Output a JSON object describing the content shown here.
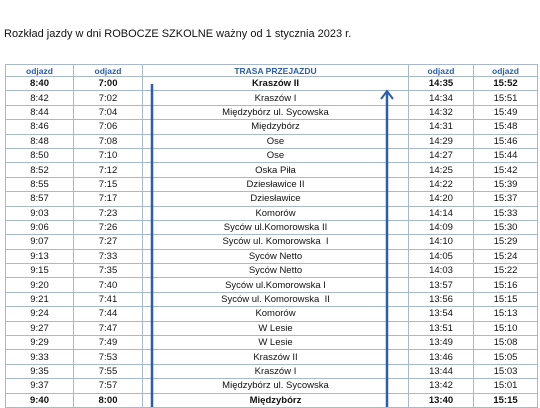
{
  "header": {
    "title": "Rozkład jazdy w dni ROBOCZE SZKOLNE ważny od 1 stycznia 2023 r."
  },
  "table": {
    "columns": [
      "odjazd",
      "odjazd",
      "TRASA PRZEJAZDU",
      "odjazd",
      "odjazd"
    ],
    "rows": [
      [
        "8:40",
        "7:00",
        "Kraszów II",
        "14:35",
        "15:52"
      ],
      [
        "8:42",
        "7:02",
        "Kraszów I",
        "14:34",
        "15:51"
      ],
      [
        "8:44",
        "7:04",
        "Międzybórz ul. Sycowska",
        "14:32",
        "15:49"
      ],
      [
        "8:46",
        "7:06",
        "Międzybórz",
        "14:31",
        "15:48"
      ],
      [
        "8:48",
        "7:08",
        "Ose",
        "14:29",
        "15:46"
      ],
      [
        "8:50",
        "7:10",
        "Ose",
        "14:27",
        "15:44"
      ],
      [
        "8:52",
        "7:12",
        "Oska Piła",
        "14:25",
        "15:42"
      ],
      [
        "8:55",
        "7:15",
        "Dziesławice II",
        "14:22",
        "15:39"
      ],
      [
        "8:57",
        "7:17",
        "Dziesławice",
        "14:20",
        "15:37"
      ],
      [
        "9:03",
        "7:23",
        "Komorów",
        "14:14",
        "15:33"
      ],
      [
        "9:06",
        "7:26",
        "Syców ul.Komorowska II",
        "14:09",
        "15:30"
      ],
      [
        "9:07",
        "7:27",
        "Syców ul. Komorowska  I",
        "14:10",
        "15:29"
      ],
      [
        "9:13",
        "7:33",
        "Syców Netto",
        "14:05",
        "15:24"
      ],
      [
        "9:15",
        "7:35",
        "Syców Netto",
        "14:03",
        "15:22"
      ],
      [
        "9:20",
        "7:40",
        "Syców ul.Komorowska I",
        "13:57",
        "15:16"
      ],
      [
        "9:21",
        "7:41",
        "Syców ul. Komorowska  II",
        "13:56",
        "15:15"
      ],
      [
        "9:24",
        "7:44",
        "Komorów",
        "13:54",
        "15:13"
      ],
      [
        "9:27",
        "7:47",
        "W Lesie",
        "13:51",
        "15:10"
      ],
      [
        "9:29",
        "7:49",
        "W Lesie",
        "13:49",
        "15:08"
      ],
      [
        "9:33",
        "7:53",
        "Kraszów II",
        "13:46",
        "15:05"
      ],
      [
        "9:35",
        "7:55",
        "Kraszów I",
        "13:44",
        "15:03"
      ],
      [
        "9:37",
        "7:57",
        "Międzybórz ul. Sycowska",
        "13:42",
        "15:01"
      ],
      [
        "9:40",
        "8:00",
        "Międzybórz",
        "13:40",
        "15:15"
      ]
    ]
  }
}
